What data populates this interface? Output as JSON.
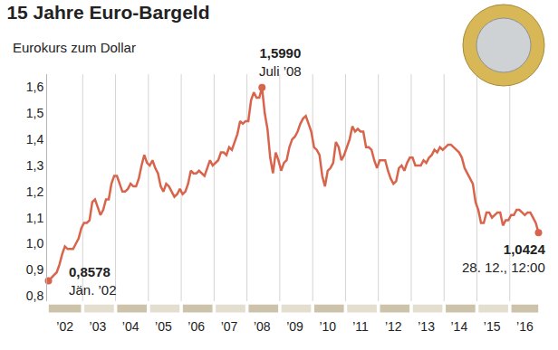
{
  "chart_data": {
    "type": "line",
    "title": "15 Jahre Euro-Bargeld",
    "subtitle": "Eurokurs zum Dollar",
    "color": "#d9644c",
    "grid": true,
    "ylim": [
      0.78,
      1.65
    ],
    "yticks": [
      {
        "value": 0.8,
        "label": "0,8"
      },
      {
        "value": 0.9,
        "label": "0,9"
      },
      {
        "value": 1.0,
        "label": "1,0"
      },
      {
        "value": 1.1,
        "label": "1,1"
      },
      {
        "value": 1.2,
        "label": "1,2"
      },
      {
        "value": 1.3,
        "label": "1,3"
      },
      {
        "value": 1.4,
        "label": "1,4"
      },
      {
        "value": 1.5,
        "label": "1,5"
      },
      {
        "value": 1.6,
        "label": "1,6"
      }
    ],
    "categories": [
      null,
      null,
      null,
      null,
      null,
      null,
      "’02",
      null,
      null,
      null,
      null,
      null,
      null,
      null,
      null,
      null,
      null,
      null,
      "’03",
      null,
      null,
      null,
      null,
      null,
      null,
      null,
      null,
      null,
      null,
      null,
      "’04",
      null,
      null,
      null,
      null,
      null,
      null,
      null,
      null,
      null,
      null,
      null,
      "’05",
      null,
      null,
      null,
      null,
      null,
      null,
      null,
      null,
      null,
      null,
      null,
      "’06",
      null,
      null,
      null,
      null,
      null,
      null,
      null,
      null,
      null,
      null,
      null,
      "’07",
      null,
      null,
      null,
      null,
      null,
      null,
      null,
      null,
      null,
      null,
      null,
      "’08",
      null,
      null,
      null,
      null,
      null,
      null,
      null,
      null,
      null,
      null,
      null,
      "’09",
      null,
      null,
      null,
      null,
      null,
      null,
      null,
      null,
      null,
      null,
      null,
      "’10",
      null,
      null,
      null,
      null,
      null,
      null,
      null,
      null,
      null,
      null,
      null,
      "’11",
      null,
      null,
      null,
      null,
      null,
      null,
      null,
      null,
      null,
      null,
      null,
      "’12",
      null,
      null,
      null,
      null,
      null,
      null,
      null,
      null,
      null,
      null,
      null,
      "’13",
      null,
      null,
      null,
      null,
      null,
      null,
      null,
      null,
      null,
      null,
      null,
      "’14",
      null,
      null,
      null,
      null,
      null,
      null,
      null,
      null,
      null,
      null,
      null,
      "’15",
      null,
      null,
      null,
      null,
      null,
      null,
      null,
      null,
      null,
      null,
      null,
      "’16",
      null,
      null,
      null,
      null,
      null
    ],
    "values": [
      0.8578,
      0.87,
      0.88,
      0.89,
      0.92,
      0.96,
      0.99,
      0.98,
      0.98,
      0.98,
      1.0,
      1.02,
      1.06,
      1.08,
      1.08,
      1.09,
      1.16,
      1.17,
      1.14,
      1.11,
      1.13,
      1.17,
      1.17,
      1.23,
      1.26,
      1.26,
      1.23,
      1.2,
      1.2,
      1.21,
      1.23,
      1.22,
      1.22,
      1.25,
      1.3,
      1.34,
      1.31,
      1.3,
      1.32,
      1.29,
      1.27,
      1.22,
      1.2,
      1.23,
      1.22,
      1.2,
      1.18,
      1.19,
      1.21,
      1.19,
      1.2,
      1.23,
      1.28,
      1.27,
      1.27,
      1.28,
      1.27,
      1.26,
      1.29,
      1.32,
      1.3,
      1.31,
      1.32,
      1.35,
      1.35,
      1.34,
      1.37,
      1.36,
      1.39,
      1.42,
      1.47,
      1.46,
      1.47,
      1.47,
      1.55,
      1.58,
      1.56,
      1.56,
      1.599,
      1.5,
      1.44,
      1.33,
      1.27,
      1.35,
      1.32,
      1.28,
      1.31,
      1.32,
      1.37,
      1.4,
      1.41,
      1.43,
      1.46,
      1.48,
      1.49,
      1.46,
      1.43,
      1.37,
      1.36,
      1.34,
      1.26,
      1.22,
      1.28,
      1.29,
      1.31,
      1.39,
      1.37,
      1.32,
      1.34,
      1.37,
      1.4,
      1.45,
      1.43,
      1.44,
      1.43,
      1.43,
      1.37,
      1.37,
      1.36,
      1.32,
      1.29,
      1.32,
      1.32,
      1.32,
      1.28,
      1.25,
      1.23,
      1.24,
      1.29,
      1.3,
      1.28,
      1.31,
      1.33,
      1.33,
      1.3,
      1.3,
      1.3,
      1.32,
      1.31,
      1.33,
      1.34,
      1.36,
      1.35,
      1.37,
      1.36,
      1.37,
      1.38,
      1.38,
      1.37,
      1.36,
      1.35,
      1.33,
      1.29,
      1.27,
      1.25,
      1.23,
      1.16,
      1.13,
      1.08,
      1.08,
      1.12,
      1.12,
      1.1,
      1.11,
      1.12,
      1.12,
      1.07,
      1.09,
      1.09,
      1.11,
      1.11,
      1.13,
      1.13,
      1.12,
      1.11,
      1.12,
      1.12,
      1.1,
      1.08,
      1.0424
    ],
    "annotations": [
      {
        "index": 0,
        "value": 0.8578,
        "label": "0,8578",
        "text": "Jän. ’02"
      },
      {
        "index": 78,
        "value": 1.599,
        "label": "1,5990",
        "text": "Juli ’08"
      },
      {
        "index": 179,
        "value": 1.0424,
        "label": "1,0424",
        "text": "28. 12., 12:00"
      }
    ]
  }
}
